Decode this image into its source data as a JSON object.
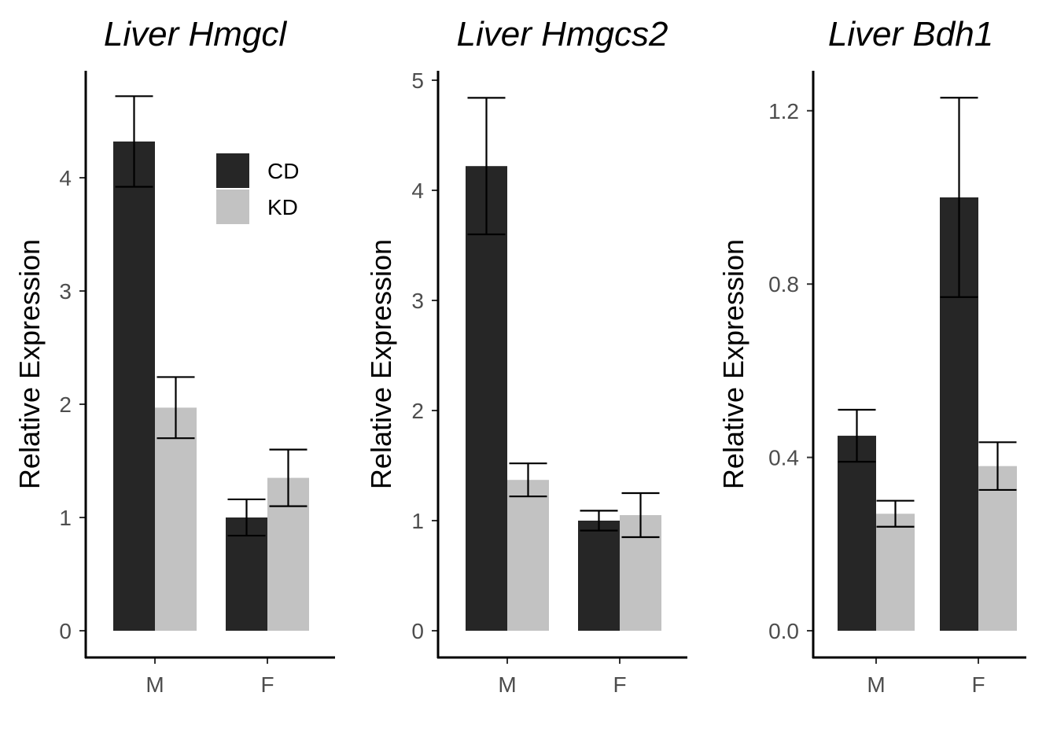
{
  "chart_data": [
    {
      "type": "bar",
      "title": "Liver Hmgcl",
      "ylabel": "Relative Expression",
      "xlabel": "",
      "categories": [
        "M",
        "F"
      ],
      "ylim": [
        0,
        4.92
      ],
      "yticks": [
        "0",
        "1",
        "2",
        "3",
        "4"
      ],
      "series": [
        {
          "name": "CD",
          "values": [
            4.32,
            1.0
          ],
          "errors": [
            0.4,
            0.16
          ]
        },
        {
          "name": "KD",
          "values": [
            1.97,
            1.35
          ],
          "errors": [
            0.27,
            0.25
          ]
        }
      ],
      "legend": {
        "position": "top-right",
        "entries": [
          "CD",
          "KD"
        ]
      },
      "grid": false
    },
    {
      "type": "bar",
      "title": "Liver Hmgcs2",
      "ylabel": "Relative Expression",
      "xlabel": "",
      "categories": [
        "M",
        "F"
      ],
      "ylim": [
        0,
        5.06
      ],
      "yticks": [
        "0",
        "1",
        "2",
        "3",
        "4",
        "5"
      ],
      "series": [
        {
          "name": "CD",
          "values": [
            4.22,
            1.0
          ],
          "errors": [
            0.62,
            0.09
          ]
        },
        {
          "name": "KD",
          "values": [
            1.37,
            1.05
          ],
          "errors": [
            0.15,
            0.2
          ]
        }
      ],
      "grid": false
    },
    {
      "type": "bar",
      "title": "Liver Bdh1",
      "ylabel": "Relative Expression",
      "xlabel": "",
      "categories": [
        "M",
        "F"
      ],
      "ylim": [
        0,
        1.29
      ],
      "yticks": [
        "0.0",
        "0.4",
        "0.8",
        "1.2"
      ],
      "series": [
        {
          "name": "CD",
          "values": [
            0.45,
            1.0
          ],
          "errors": [
            0.06,
            0.23
          ]
        },
        {
          "name": "KD",
          "values": [
            0.27,
            0.38
          ],
          "errors": [
            0.03,
            0.055
          ]
        }
      ],
      "grid": false
    }
  ],
  "colors": {
    "CD": "#262626",
    "KD": "#c2c2c2",
    "axis": "#000000",
    "tick_text": "#4d4d4d"
  }
}
